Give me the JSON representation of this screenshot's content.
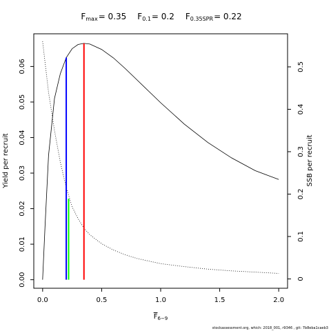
{
  "chart_data": {
    "type": "line",
    "title": {
      "fmax_label": "F",
      "fmax_sub": "max",
      "fmax_value": "= 0.35",
      "f01_label": "F",
      "f01_sub": "0.1",
      "f01_value": "= 0.2",
      "fspr_label": "F",
      "fspr_sub": "0.35SPR",
      "fspr_value": "= 0.22"
    },
    "xlabel": {
      "main": "F",
      "sub": "6−9"
    },
    "ylabel": "Yield per recruit",
    "y2label": "SSB per recruit",
    "xlim": [
      -0.075,
      2.075
    ],
    "ylim": [
      -0.0024,
      0.0692
    ],
    "y2lim": [
      -0.022,
      0.578
    ],
    "x_ticks": [
      0,
      0.5,
      1,
      1.5,
      2
    ],
    "x_tick_labels": [
      "0.0",
      "0.5",
      "1.0",
      "1.5",
      "2.0"
    ],
    "y_ticks": [
      0,
      0.01,
      0.02,
      0.03,
      0.04,
      0.05,
      0.06
    ],
    "y_tick_labels": [
      "0.00",
      "0.01",
      "0.02",
      "0.03",
      "0.04",
      "0.05",
      "0.06"
    ],
    "y2_ticks": [
      0,
      0.1,
      0.2,
      0.3,
      0.4,
      0.5
    ],
    "y2_tick_labels": [
      "0",
      "0.1",
      "0.2",
      "0.3",
      "0.4",
      "0.5"
    ],
    "series": [
      {
        "style": "solid",
        "axis": "left",
        "x": [
          0,
          0.02,
          0.05,
          0.1,
          0.15,
          0.2,
          0.25,
          0.3,
          0.35,
          0.4,
          0.5,
          0.6,
          0.7,
          0.8,
          0.9,
          1.0,
          1.2,
          1.4,
          1.6,
          1.8,
          2.0
        ],
        "y": [
          0,
          0.015,
          0.035,
          0.051,
          0.058,
          0.0625,
          0.065,
          0.0662,
          0.0665,
          0.0663,
          0.0648,
          0.0624,
          0.0594,
          0.0562,
          0.053,
          0.0498,
          0.0438,
          0.0386,
          0.0343,
          0.0307,
          0.0282
        ]
      },
      {
        "style": "dotted",
        "axis": "right",
        "x": [
          0,
          0.05,
          0.1,
          0.15,
          0.2,
          0.25,
          0.3,
          0.35,
          0.4,
          0.5,
          0.6,
          0.7,
          0.8,
          0.9,
          1.0,
          1.2,
          1.4,
          1.6,
          1.8,
          2.0
        ],
        "y": [
          0.56,
          0.44,
          0.35,
          0.275,
          0.215,
          0.17,
          0.142,
          0.12,
          0.104,
          0.083,
          0.068,
          0.057,
          0.048,
          0.042,
          0.036,
          0.029,
          0.023,
          0.019,
          0.016,
          0.013
        ]
      }
    ],
    "reference_lines": [
      {
        "color": "#0000ff",
        "x": 0.2,
        "y_top": 0.0625
      },
      {
        "color": "#00ff00",
        "x": 0.22,
        "y_top": 0.0228
      },
      {
        "color": "#ff0000",
        "x": 0.35,
        "y_top": 0.0665
      }
    ]
  },
  "footer": {
    "credit": "stockassessment.org, which: 2018_001, r9346 , git: 7b8eba1caeb3"
  }
}
